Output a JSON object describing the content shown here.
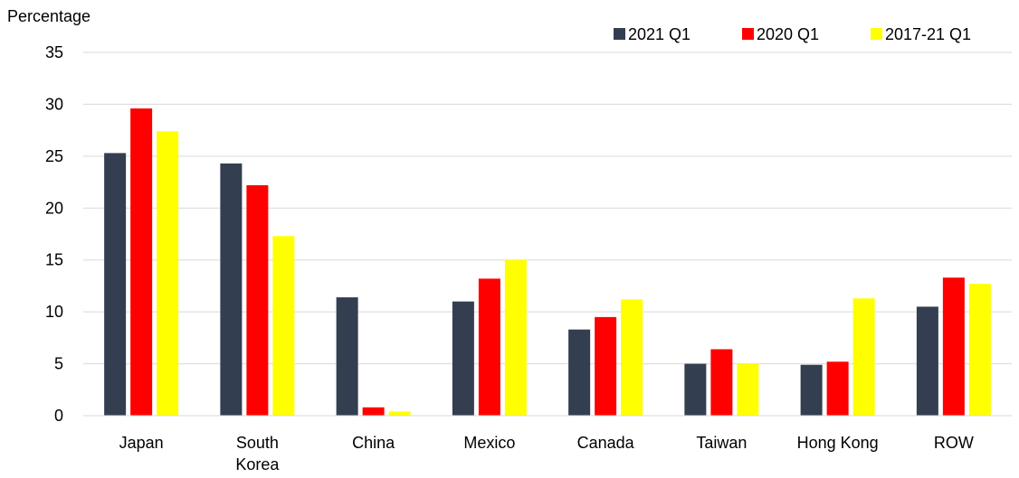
{
  "chart_data": {
    "type": "bar",
    "title": "",
    "ylabel": "Percentage",
    "xlabel": "",
    "ylim": [
      0,
      35
    ],
    "yticks": [
      0,
      5,
      10,
      15,
      20,
      25,
      30,
      35
    ],
    "grid": true,
    "legend_position": "top-right",
    "categories": [
      "Japan",
      "South Korea",
      "China",
      "Mexico",
      "Canada",
      "Taiwan",
      "Hong Kong",
      "ROW"
    ],
    "category_lines": [
      [
        "Japan"
      ],
      [
        "South",
        "Korea"
      ],
      [
        "China"
      ],
      [
        "Mexico"
      ],
      [
        "Canada"
      ],
      [
        "Taiwan"
      ],
      [
        "Hong Kong"
      ],
      [
        "ROW"
      ]
    ],
    "series": [
      {
        "name": "2021 Q1",
        "color": "#333f50",
        "values": [
          25.3,
          24.3,
          11.4,
          11.0,
          8.3,
          5.0,
          4.9,
          10.5
        ]
      },
      {
        "name": "2020 Q1",
        "color": "#ff0000",
        "values": [
          29.6,
          22.2,
          0.8,
          13.2,
          9.5,
          6.4,
          5.2,
          13.3
        ]
      },
      {
        "name": "2017-21 Q1",
        "color": "#ffff00",
        "values": [
          27.4,
          17.3,
          0.4,
          15.0,
          11.2,
          5.0,
          11.3,
          12.7
        ]
      }
    ]
  }
}
